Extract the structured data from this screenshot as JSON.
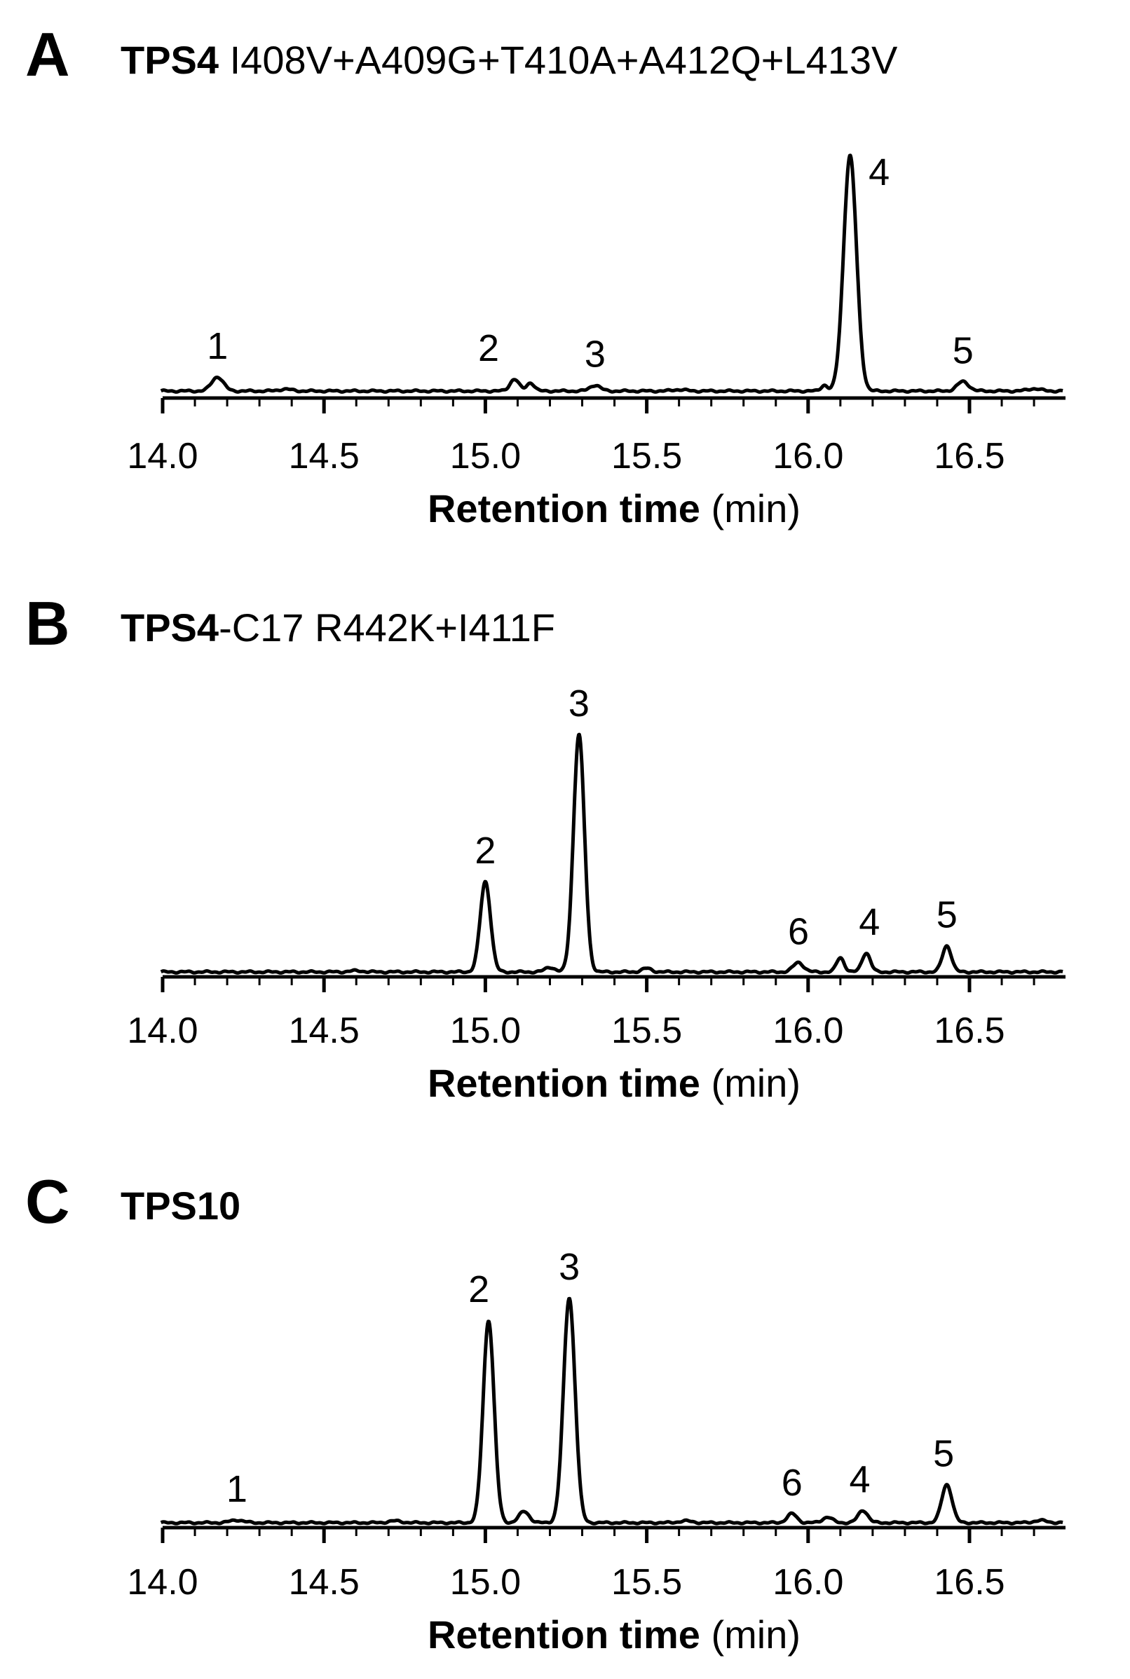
{
  "chart_data": [
    {
      "type": "line",
      "panel_letter": "A",
      "title_bold": "TPS4",
      "title_rest": " I408V+A409G+T410A+A412Q+L413V",
      "xlabel_bold": "Retention time",
      "xlabel_rest": " (min)",
      "xlim": [
        14.0,
        16.8
      ],
      "xticks": [
        "14.0",
        "14.5",
        "15.0",
        "15.5",
        "16.0",
        "16.5"
      ],
      "ylim": [
        0,
        100
      ],
      "grid": false,
      "peaks": [
        {
          "x": 14.17,
          "height": 6,
          "width": 0.018
        },
        {
          "x": 14.38,
          "height": 0.8,
          "width": 0.02
        },
        {
          "x": 15.09,
          "height": 5,
          "width": 0.014
        },
        {
          "x": 15.14,
          "height": 3.5,
          "width": 0.012
        },
        {
          "x": 15.34,
          "height": 2.5,
          "width": 0.016
        },
        {
          "x": 15.6,
          "height": 0.6,
          "width": 0.02
        },
        {
          "x": 16.05,
          "height": 2.5,
          "width": 0.01
        },
        {
          "x": 16.13,
          "height": 100,
          "width": 0.02
        },
        {
          "x": 16.48,
          "height": 4,
          "width": 0.018
        },
        {
          "x": 16.7,
          "height": 1,
          "width": 0.02
        }
      ],
      "annotations": [
        {
          "label": "1",
          "x": 14.17
        },
        {
          "label": "2",
          "x": 15.01
        },
        {
          "label": "3",
          "x": 15.34
        },
        {
          "label": "4",
          "x": 16.22
        },
        {
          "label": "5",
          "x": 16.48
        }
      ]
    },
    {
      "type": "line",
      "panel_letter": "B",
      "title_bold": "TPS4",
      "title_rest": "-C17 R442K+I411F",
      "xlabel_bold": "Retention time",
      "xlabel_rest": " (min)",
      "xlim": [
        14.0,
        16.8
      ],
      "xticks": [
        "14.0",
        "14.5",
        "15.0",
        "15.5",
        "16.0",
        "16.5"
      ],
      "ylim": [
        0,
        100
      ],
      "grid": false,
      "peaks": [
        {
          "x": 14.6,
          "height": 0.5,
          "width": 0.02
        },
        {
          "x": 15.0,
          "height": 38,
          "width": 0.016
        },
        {
          "x": 15.2,
          "height": 2,
          "width": 0.015
        },
        {
          "x": 15.29,
          "height": 100,
          "width": 0.017
        },
        {
          "x": 15.5,
          "height": 1.5,
          "width": 0.015
        },
        {
          "x": 15.97,
          "height": 4,
          "width": 0.016
        },
        {
          "x": 16.1,
          "height": 6,
          "width": 0.012
        },
        {
          "x": 16.18,
          "height": 8,
          "width": 0.013
        },
        {
          "x": 16.43,
          "height": 11,
          "width": 0.014
        }
      ],
      "annotations": [
        {
          "label": "2",
          "x": 15.0
        },
        {
          "label": "3",
          "x": 15.29
        },
        {
          "label": "6",
          "x": 15.97
        },
        {
          "label": "4",
          "x": 16.19
        },
        {
          "label": "5",
          "x": 16.43
        }
      ]
    },
    {
      "type": "line",
      "panel_letter": "C",
      "title_bold": "TPS10",
      "title_rest": "",
      "xlabel_bold": "Retention time",
      "xlabel_rest": " (min)",
      "xlim": [
        14.0,
        16.8
      ],
      "xticks": [
        "14.0",
        "14.5",
        "15.0",
        "15.5",
        "16.0",
        "16.5"
      ],
      "ylim": [
        0,
        100
      ],
      "grid": false,
      "peaks": [
        {
          "x": 14.23,
          "height": 1.2,
          "width": 0.02
        },
        {
          "x": 14.72,
          "height": 0.8,
          "width": 0.02
        },
        {
          "x": 15.01,
          "height": 90,
          "width": 0.017
        },
        {
          "x": 15.12,
          "height": 5,
          "width": 0.016
        },
        {
          "x": 15.26,
          "height": 100,
          "width": 0.018
        },
        {
          "x": 15.62,
          "height": 0.8,
          "width": 0.02
        },
        {
          "x": 15.95,
          "height": 4,
          "width": 0.015
        },
        {
          "x": 16.06,
          "height": 2.5,
          "width": 0.015
        },
        {
          "x": 16.17,
          "height": 5.5,
          "width": 0.015
        },
        {
          "x": 16.43,
          "height": 17,
          "width": 0.016
        },
        {
          "x": 16.72,
          "height": 1,
          "width": 0.02
        }
      ],
      "annotations": [
        {
          "label": "1",
          "x": 14.23
        },
        {
          "label": "2",
          "x": 14.98
        },
        {
          "label": "3",
          "x": 15.26
        },
        {
          "label": "6",
          "x": 15.95
        },
        {
          "label": "4",
          "x": 16.16
        },
        {
          "label": "5",
          "x": 16.42
        }
      ]
    }
  ]
}
